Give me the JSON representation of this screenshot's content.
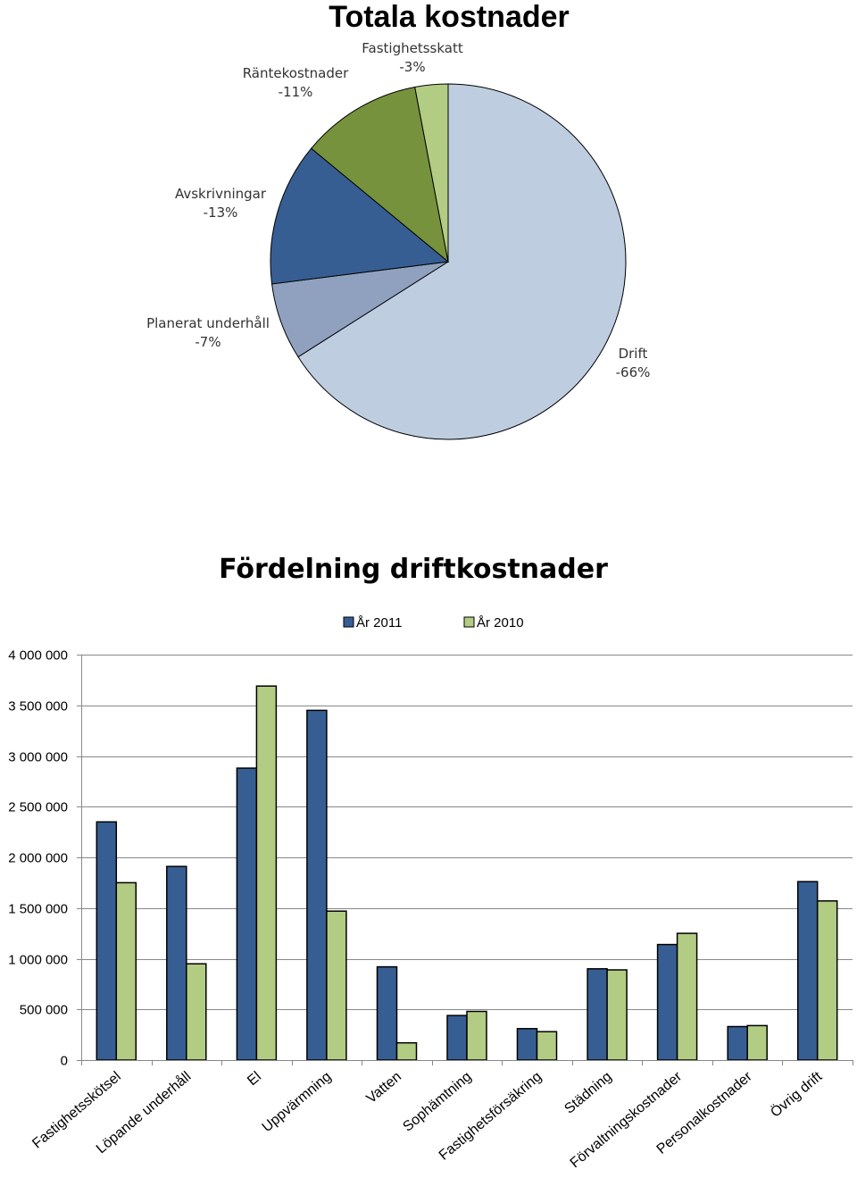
{
  "chart_data": [
    {
      "type": "pie",
      "title": "Totala kostnader",
      "slices": [
        {
          "label": "Drift",
          "display": "-66%",
          "value": 66,
          "color": "#bfcde0"
        },
        {
          "label": "Planerat underhåll",
          "display": "-7%",
          "value": 7,
          "color": "#8fa1bf"
        },
        {
          "label": "Avskrivningar",
          "display": "-13%",
          "value": 13,
          "color": "#375e93"
        },
        {
          "label": "Räntekostnader",
          "display": "-11%",
          "value": 11,
          "color": "#76923c"
        },
        {
          "label": "Fastighetsskatt",
          "display": "-3%",
          "value": 3,
          "color": "#b3cc84"
        }
      ]
    },
    {
      "type": "bar",
      "title": "Fördelning driftkostnader",
      "categories": [
        "Fastighetsskötsel",
        "Löpande underhåll",
        "El",
        "Uppvärmning",
        "Vatten",
        "Sophämtning",
        "Fastighetsförsäkring",
        "Städning",
        "Förvaltningskostnader",
        "Personalkostnader",
        "Övrig drift"
      ],
      "series": [
        {
          "name": "År 2011",
          "color": "#375e93",
          "values": [
            2350000,
            1910000,
            2880000,
            3450000,
            920000,
            440000,
            310000,
            900000,
            1140000,
            330000,
            1760000
          ]
        },
        {
          "name": "År 2010",
          "color": "#b3cc84",
          "values": [
            1750000,
            950000,
            3690000,
            1470000,
            170000,
            480000,
            280000,
            890000,
            1250000,
            340000,
            1570000
          ]
        }
      ],
      "ylim": [
        0,
        4000000
      ],
      "yticks": [
        0,
        500000,
        1000000,
        1500000,
        2000000,
        2500000,
        3000000,
        3500000,
        4000000
      ],
      "ytick_labels": [
        "0",
        "500 000",
        "1 000 000",
        "1 500 000",
        "2 000 000",
        "2 500 000",
        "3 000 000",
        "3 500 000",
        "4 000 000"
      ],
      "grid": true,
      "legend": "top"
    }
  ]
}
